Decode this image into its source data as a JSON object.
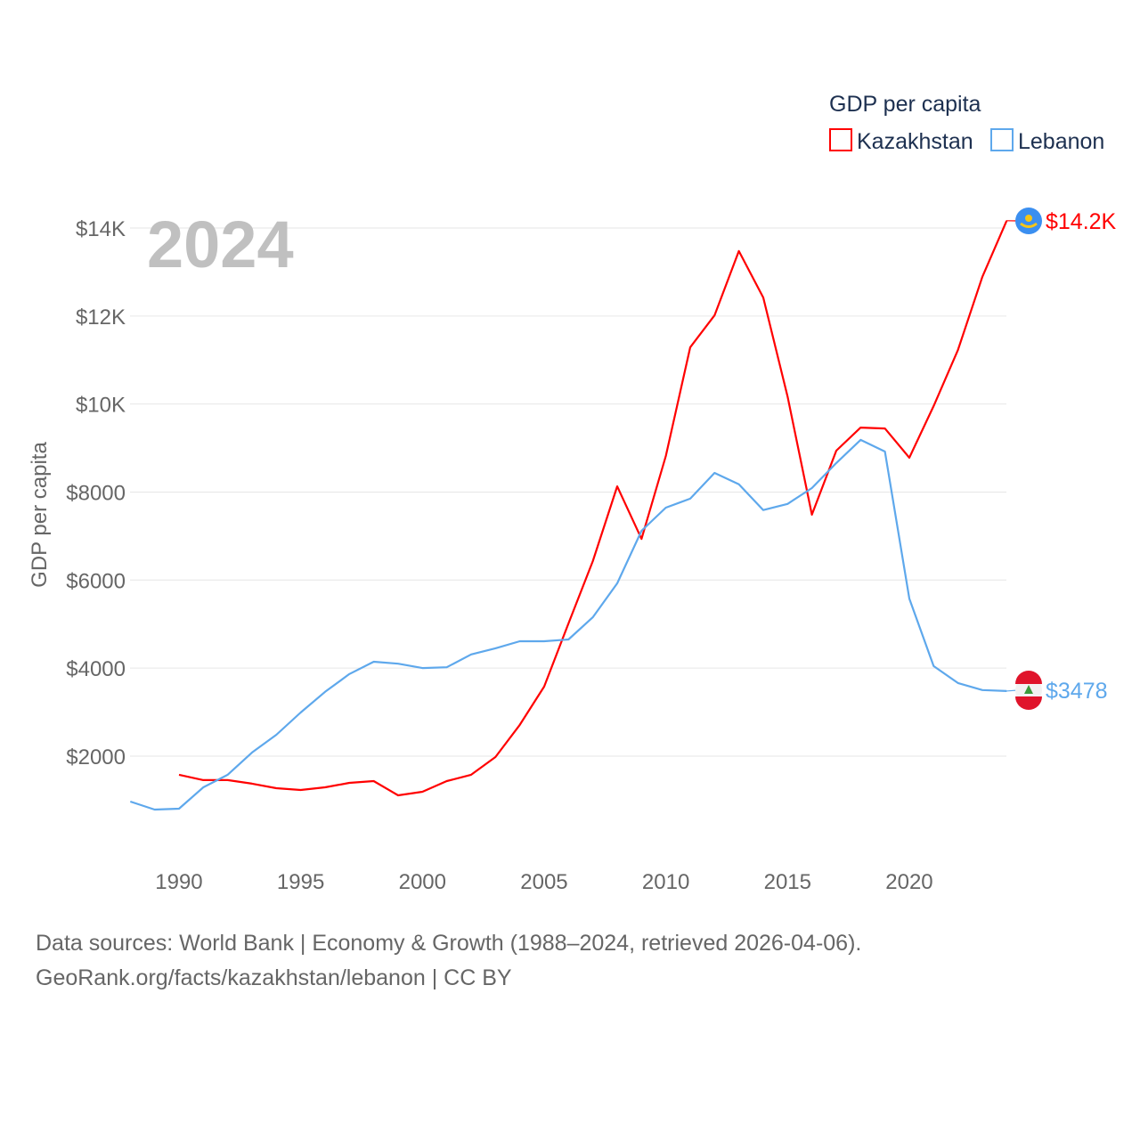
{
  "chart_data": {
    "type": "line",
    "title": "GDP per capita",
    "year_label": "2024",
    "ylabel": "GDP per capita",
    "xlabel": "",
    "xlim": [
      1988,
      2024
    ],
    "ylim": [
      0,
      14500
    ],
    "grid": true,
    "legend_position": "top-right",
    "x_ticks": [
      1990,
      1995,
      2000,
      2005,
      2010,
      2015,
      2020
    ],
    "y_ticks": [
      {
        "value": 2000,
        "label": "$2000"
      },
      {
        "value": 4000,
        "label": "$4000"
      },
      {
        "value": 6000,
        "label": "$6000"
      },
      {
        "value": 8000,
        "label": "$8000"
      },
      {
        "value": 10000,
        "label": "$10K"
      },
      {
        "value": 12000,
        "label": "$12K"
      },
      {
        "value": 14000,
        "label": "$14K"
      }
    ],
    "series": [
      {
        "name": "Kazakhstan",
        "color": "#ff0000",
        "flag": "kazakhstan-flag",
        "end_label": "$14.2K",
        "x": [
          1990,
          1991,
          1992,
          1993,
          1994,
          1995,
          1996,
          1997,
          1998,
          1999,
          2000,
          2001,
          2002,
          2003,
          2004,
          2005,
          2006,
          2007,
          2008,
          2009,
          2010,
          2011,
          2012,
          2013,
          2014,
          2015,
          2016,
          2017,
          2018,
          2019,
          2020,
          2021,
          2022,
          2023,
          2024
        ],
        "values": [
          1576,
          1455,
          1455,
          1374,
          1271,
          1231,
          1292,
          1393,
          1433,
          1109,
          1190,
          1433,
          1576,
          1980,
          2710,
          3580,
          5015,
          6430,
          8130,
          6935,
          8820,
          11290,
          12015,
          13475,
          12420,
          10170,
          7485,
          8940,
          9465,
          9445,
          8780,
          9955,
          11230,
          12890,
          14165
        ]
      },
      {
        "name": "Lebanon",
        "color": "#5ea8ec",
        "flag": "lebanon-flag",
        "end_label": "$3478",
        "x": [
          1988,
          1989,
          1990,
          1991,
          1992,
          1993,
          1994,
          1995,
          1996,
          1997,
          1998,
          1999,
          2000,
          2001,
          2002,
          2003,
          2004,
          2005,
          2006,
          2007,
          2008,
          2009,
          2010,
          2011,
          2012,
          2013,
          2014,
          2015,
          2016,
          2017,
          2018,
          2019,
          2020,
          2021,
          2022,
          2023,
          2024
        ],
        "values": [
          967,
          785,
          805,
          1292,
          1576,
          2082,
          2486,
          2990,
          3460,
          3865,
          4145,
          4100,
          4000,
          4020,
          4310,
          4450,
          4610,
          4610,
          4650,
          5155,
          5925,
          7120,
          7645,
          7850,
          8435,
          8175,
          7590,
          7730,
          8090,
          8660,
          9185,
          8920,
          5580,
          4045,
          3660,
          3500,
          3478
        ]
      }
    ]
  },
  "footer": {
    "line1": "Data sources: World Bank | Economy & Growth (1988–2024, retrieved 2026-04-06).",
    "line2": "GeoRank.org/facts/kazakhstan/lebanon | CC BY"
  }
}
